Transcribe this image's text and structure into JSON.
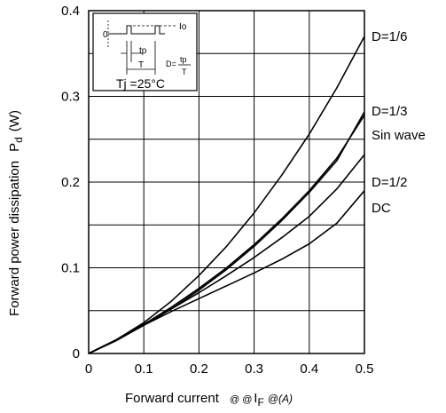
{
  "chart_data": {
    "type": "line",
    "xlabel": "Forward current",
    "xlabel_suffix_mark": "@ @",
    "xlabel_symbol": "I",
    "xlabel_sub": "F",
    "xlabel_unit": "@(A)",
    "ylabel": "Forward power dissipation",
    "ylabel_symbol": "P",
    "ylabel_sub": "d",
    "ylabel_unit": "(W)",
    "xlim": [
      0,
      0.5
    ],
    "ylim": [
      0,
      0.4
    ],
    "x_ticks": [
      "0",
      "0.1",
      "0.2",
      "0.3",
      "0.4",
      "0.5"
    ],
    "y_ticks": [
      "0",
      "0.1",
      "0.2",
      "0.3",
      "0.4"
    ],
    "x_grid": [
      0,
      0.1,
      0.2,
      0.3,
      0.4,
      0.5
    ],
    "y_grid": [
      0,
      0.05,
      0.1,
      0.15,
      0.2,
      0.25,
      0.3,
      0.35,
      0.4
    ],
    "grid": true,
    "series": [
      {
        "name": "D=1/6",
        "x": [
          0,
          0.05,
          0.1,
          0.15,
          0.2,
          0.25,
          0.3,
          0.35,
          0.4,
          0.45,
          0.5
        ],
        "values": [
          0,
          0.016,
          0.036,
          0.061,
          0.091,
          0.125,
          0.164,
          0.208,
          0.256,
          0.31,
          0.37
        ]
      },
      {
        "name": "D=1/3",
        "x": [
          0,
          0.05,
          0.1,
          0.15,
          0.2,
          0.25,
          0.3,
          0.35,
          0.4,
          0.45,
          0.5
        ],
        "values": [
          0,
          0.015,
          0.033,
          0.052,
          0.074,
          0.098,
          0.125,
          0.155,
          0.188,
          0.225,
          0.282
        ]
      },
      {
        "name": "Sin wave",
        "x": [
          0,
          0.05,
          0.1,
          0.15,
          0.2,
          0.25,
          0.3,
          0.35,
          0.4,
          0.45,
          0.5
        ],
        "values": [
          0,
          0.0155,
          0.034,
          0.054,
          0.076,
          0.1,
          0.127,
          0.157,
          0.19,
          0.228,
          0.278
        ]
      },
      {
        "name": "D=1/2",
        "x": [
          0,
          0.05,
          0.1,
          0.15,
          0.2,
          0.25,
          0.3,
          0.35,
          0.4,
          0.45,
          0.5
        ],
        "values": [
          0,
          0.016,
          0.034,
          0.052,
          0.071,
          0.091,
          0.112,
          0.135,
          0.16,
          0.192,
          0.232
        ]
      },
      {
        "name": "DC",
        "x": [
          0,
          0.05,
          0.1,
          0.15,
          0.2,
          0.25,
          0.3,
          0.35,
          0.4,
          0.45,
          0.5
        ],
        "values": [
          0,
          0.016,
          0.033,
          0.049,
          0.064,
          0.079,
          0.094,
          0.11,
          0.128,
          0.152,
          0.19
        ]
      }
    ],
    "series_labels": [
      "D=1/6",
      "D=1/3",
      "Sin wave",
      "D=1/2",
      "DC"
    ],
    "inset": {
      "io_label": "Io",
      "zero_label": "0",
      "tp_label": "tp",
      "t_label": "T",
      "formula_lhs": "D=",
      "formula_num": "tp",
      "formula_den": "T",
      "temp": "Tj =25°C"
    }
  }
}
